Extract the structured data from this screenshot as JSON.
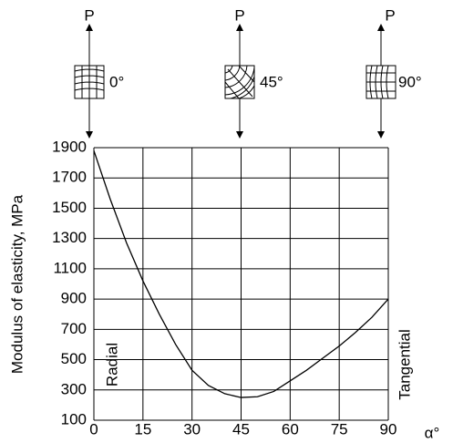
{
  "chart_data": {
    "type": "line",
    "ylabel": "Modulus of elasticity, MPa",
    "xlabel": "α°",
    "annotations": {
      "left": "Radial",
      "right": "Tangential"
    },
    "diagrams": [
      {
        "force": "P",
        "angle": "0°"
      },
      {
        "force": "P",
        "angle": "45°"
      },
      {
        "force": "P",
        "angle": "90°"
      }
    ],
    "x": [
      0,
      5,
      10,
      15,
      20,
      25,
      30,
      35,
      40,
      45,
      50,
      55,
      60,
      65,
      70,
      75,
      80,
      85,
      90
    ],
    "series": [
      {
        "color": "#000000",
        "values": [
          1880,
          1560,
          1270,
          1020,
          800,
          600,
          430,
          330,
          275,
          250,
          255,
          290,
          360,
          430,
          510,
          590,
          680,
          780,
          900
        ]
      }
    ],
    "xlim": [
      0,
      90
    ],
    "xticks": [
      0,
      15,
      30,
      45,
      60,
      75,
      90
    ],
    "ylim": [
      100,
      1900
    ],
    "yticks": [
      100,
      300,
      500,
      700,
      900,
      1100,
      1300,
      1500,
      1700,
      1900
    ],
    "grid": true
  }
}
